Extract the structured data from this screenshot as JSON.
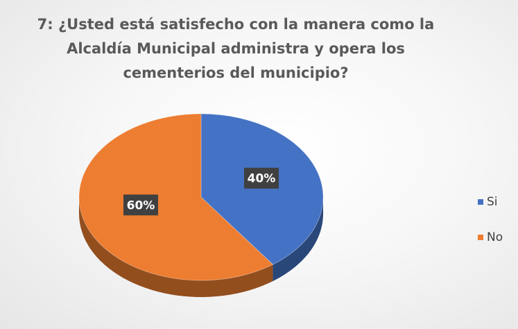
{
  "chart_data": {
    "type": "pie",
    "title_lines": [
      "7: ¿Usted está satisfecho con la manera como la",
      "Alcaldía Municipal administra y opera los",
      "cementerios del municipio?"
    ],
    "categories": [
      "Si",
      "No"
    ],
    "values": [
      40,
      60
    ],
    "data_labels": [
      "40%",
      "60%"
    ],
    "colors": [
      "#4472C4",
      "#ED7D31"
    ],
    "legend_position": "right",
    "style": "3d"
  }
}
